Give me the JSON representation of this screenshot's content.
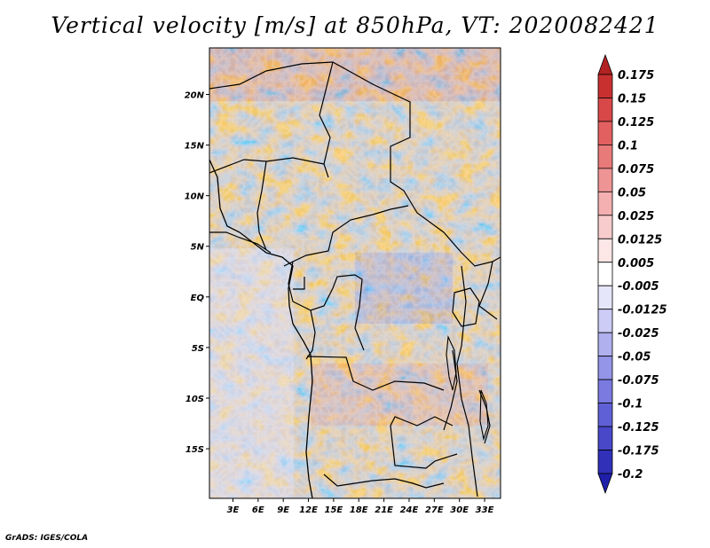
{
  "title": "Vertical velocity [m/s] at 850hPa, VT: 2020082421",
  "footer": "GrADS: IGES/COLA",
  "map": {
    "lat_labels": [
      "20N",
      "15N",
      "10N",
      "5N",
      "EQ",
      "5S",
      "10S",
      "15S"
    ],
    "lat_values": [
      20,
      15,
      10,
      5,
      0,
      -5,
      -10,
      -15
    ],
    "lon_labels": [
      "3E",
      "6E",
      "9E",
      "12E",
      "15E",
      "18E",
      "21E",
      "24E",
      "27E",
      "30E",
      "33E"
    ],
    "lon_values": [
      3,
      6,
      9,
      12,
      15,
      18,
      21,
      24,
      27,
      30,
      33
    ],
    "lat_range": [
      -19.9,
      24.6
    ],
    "lon_range": [
      0.2,
      34.9
    ]
  },
  "colorbar": {
    "labels": [
      "0.175",
      "0.15",
      "0.125",
      "0.1",
      "0.075",
      "0.05",
      "0.025",
      "0.0125",
      "0.005",
      "-0.005",
      "-0.0125",
      "-0.025",
      "-0.05",
      "-0.075",
      "-0.1",
      "-0.125",
      "-0.175",
      "-0.2"
    ],
    "colors": [
      "#b22222",
      "#c83030",
      "#d84848",
      "#e26060",
      "#e87a7a",
      "#ee9494",
      "#f4b0b0",
      "#f8cccc",
      "#fce6e6",
      "#ffffff",
      "#e6e6fa",
      "#ccccf6",
      "#b0b0ee",
      "#9494e8",
      "#7a7ae0",
      "#6060d6",
      "#4848c8",
      "#3030b8",
      "#1e1eaa"
    ]
  },
  "colors": {
    "positive": "#d03232",
    "negative": "#3a3ad0",
    "border": "#000000"
  }
}
